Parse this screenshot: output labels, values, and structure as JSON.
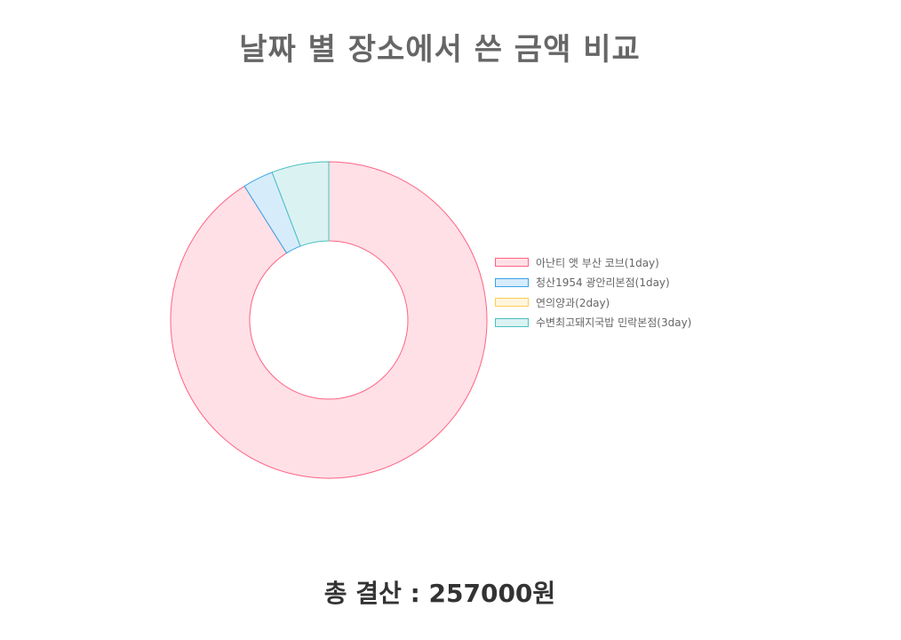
{
  "chart_data": {
    "type": "pie",
    "title": "날짜 별 장소에서 쓴 금액 비교",
    "legend_position": "right",
    "categories": [
      "아난티 앳 부산 코브(1day)",
      "청산1954 광안리본점(1day)",
      "연의양과(2day)",
      "수변최고돼지국밥 민락본점(3day)"
    ],
    "values": [
      234000,
      8000,
      0,
      15000
    ],
    "colors": {
      "fill": [
        "#ffe0e6",
        "#d7ecfb",
        "#fff5dd",
        "#dbf2f2"
      ],
      "border": [
        "#ff6384",
        "#36a2eb",
        "#ffcd56",
        "#4bc0c0"
      ]
    }
  },
  "footer": {
    "total_label": "총 결산 : 257000원"
  }
}
